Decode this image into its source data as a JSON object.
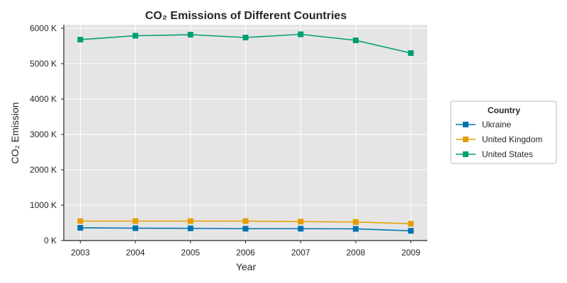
{
  "chart_data": {
    "type": "line",
    "title": "CO₂ Emissions of Different Countries",
    "xlabel": "Year",
    "ylabel": "CO₂ Emission",
    "x": [
      2003,
      2004,
      2005,
      2006,
      2007,
      2008,
      2009
    ],
    "xticks": [
      "2003",
      "2004",
      "2005",
      "2006",
      "2007",
      "2008",
      "2009"
    ],
    "ylim": [
      0,
      6100000
    ],
    "yticks": [
      0,
      1000000,
      2000000,
      3000000,
      4000000,
      5000000,
      6000000
    ],
    "ytick_labels": [
      "0 K",
      "1000 K",
      "2000 K",
      "3000 K",
      "4000 K",
      "5000 K",
      "6000 K"
    ],
    "grid": true,
    "legend": {
      "title": "Country",
      "placement": "right"
    },
    "series": [
      {
        "name": "Ukraine",
        "color": "#0072b2",
        "marker": "square",
        "values": [
          360000,
          350000,
          345000,
          335000,
          335000,
          330000,
          275000
        ]
      },
      {
        "name": "United Kingdom",
        "color": "#e69f00",
        "marker": "square",
        "values": [
          550000,
          550000,
          550000,
          550000,
          535000,
          525000,
          475000
        ]
      },
      {
        "name": "United States",
        "color": "#009e73",
        "marker": "square",
        "values": [
          5680000,
          5790000,
          5820000,
          5740000,
          5830000,
          5660000,
          5300000
        ]
      }
    ]
  }
}
